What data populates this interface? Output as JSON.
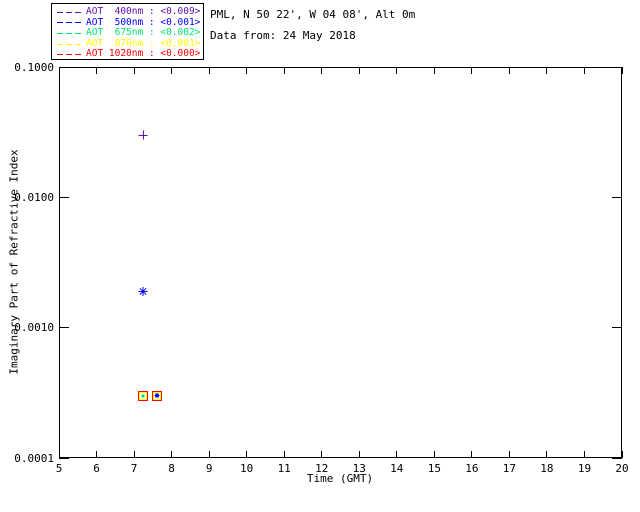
{
  "header": {
    "line1": "PML, N 50 22', W 04 08', Alt 0m",
    "line2": "Data from: 24 May 2018"
  },
  "legend": {
    "entries": [
      {
        "series": "AOT 400nm",
        "label": "AOT  400nm : <0.009>",
        "color": "#5E10B0"
      },
      {
        "series": "AOT 500nm",
        "label": "AOT  500nm : <0.001>",
        "color": "#0000FF"
      },
      {
        "series": "AOT 675nm",
        "label": "AOT  675nm : <0.002>",
        "color": "#00E673"
      },
      {
        "series": "AOT 870nm",
        "label": "AOT  870nm : <0.001>",
        "color": "#FFFF00"
      },
      {
        "series": "AOT 1020nm",
        "label": "AOT 1020nm : <0.000>",
        "color": "#FF0000"
      }
    ]
  },
  "chart_data": {
    "type": "scatter",
    "title": "",
    "xlabel": "Time (GMT)",
    "ylabel": "Imaginary Part of Refractive Index",
    "grid": false,
    "legend_position": "top-left",
    "x_axis": {
      "min": 5,
      "max": 20,
      "scale": "linear",
      "ticks": [
        5,
        6,
        7,
        8,
        9,
        10,
        11,
        12,
        13,
        14,
        15,
        16,
        17,
        18,
        19,
        20
      ]
    },
    "y_axis": {
      "min": 0.0001,
      "max": 0.1,
      "scale": "log",
      "ticks": [
        {
          "value": 0.1,
          "label": "0.1000"
        },
        {
          "value": 0.01,
          "label": "0.0100"
        },
        {
          "value": 0.001,
          "label": "0.0010"
        },
        {
          "value": 0.0001,
          "label": "0.0001"
        }
      ]
    },
    "series": [
      {
        "name": "AOT 400nm",
        "color": "#5E10B0",
        "symbol": "plus",
        "points": [
          {
            "x": 7.25,
            "y": 0.03
          }
        ]
      },
      {
        "name": "AOT 500nm",
        "color": "#0000FF",
        "symbol": "asterisk",
        "points": [
          {
            "x": 7.25,
            "y": 0.0019
          },
          {
            "x": 7.6,
            "y": 0.0003,
            "size": "small"
          }
        ]
      },
      {
        "name": "AOT 675nm",
        "color": "#00E673",
        "symbol": "dot",
        "points": [
          {
            "x": 7.25,
            "y": 0.0003
          }
        ]
      },
      {
        "name": "AOT 870nm",
        "color": "#FFFF00",
        "symbol": "square-sm",
        "points": [
          {
            "x": 7.25,
            "y": 0.0003
          },
          {
            "x": 7.6,
            "y": 0.0003
          }
        ]
      },
      {
        "name": "AOT 1020nm",
        "color": "#FF0000",
        "symbol": "square-lg",
        "points": [
          {
            "x": 7.25,
            "y": 0.0003
          },
          {
            "x": 7.6,
            "y": 0.0003
          }
        ]
      }
    ]
  }
}
